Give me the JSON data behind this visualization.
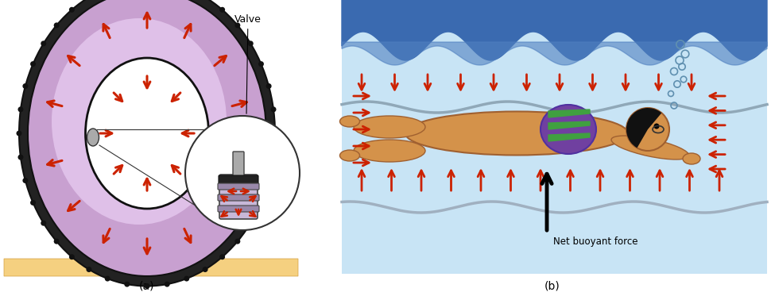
{
  "fig_width": 9.75,
  "fig_height": 3.73,
  "dpi": 100,
  "bg_color": "#ffffff",
  "arrow_color": "#cc2200",
  "label_a": "(a)",
  "label_b": "(b)",
  "valve_label": "Valve",
  "buoyant_label": "Net buoyant force",
  "tire_color": "#c8a0d0",
  "tire_highlight": "#dfc0e8",
  "tread_color": "#222222",
  "ground_color": "#f5d080",
  "water_top_color": "#3a6ab0",
  "water_body_color": "#c8e4f5",
  "swimmer_skin": "#d4924a",
  "swimmer_skin_edge": "#a06030",
  "swimmer_suit_purple": "#7040a0",
  "swimmer_suit_green": "#40a040",
  "bubble_color": "#6090b0",
  "subwave_color": "#90a8b8",
  "subwave2_color": "#a0b0c0"
}
